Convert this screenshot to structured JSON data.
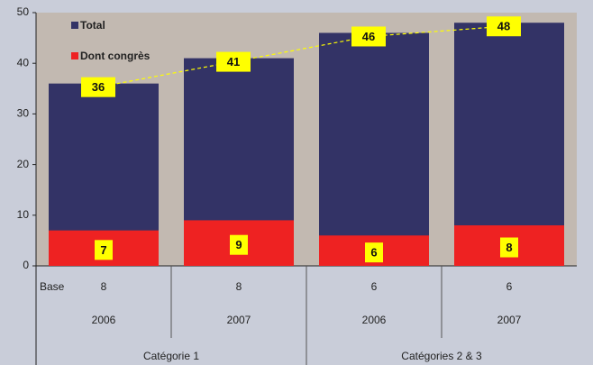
{
  "chart_data": {
    "type": "bar",
    "categories": [
      "2006",
      "2007",
      "2006",
      "2007"
    ],
    "groups": [
      "Catégorie 1",
      "Catégories 2 & 3"
    ],
    "base_label": "Base",
    "base_values": [
      8,
      8,
      6,
      6
    ],
    "series": [
      {
        "name": "Total",
        "color": "#333366",
        "values": [
          36,
          41,
          46,
          48
        ]
      },
      {
        "name": "Dont congrès",
        "color": "#ee2222",
        "values": [
          7,
          9,
          6,
          8
        ]
      }
    ],
    "ylim": [
      0,
      50
    ],
    "yticks": [
      0,
      10,
      20,
      30,
      40,
      50
    ],
    "grid": false
  }
}
